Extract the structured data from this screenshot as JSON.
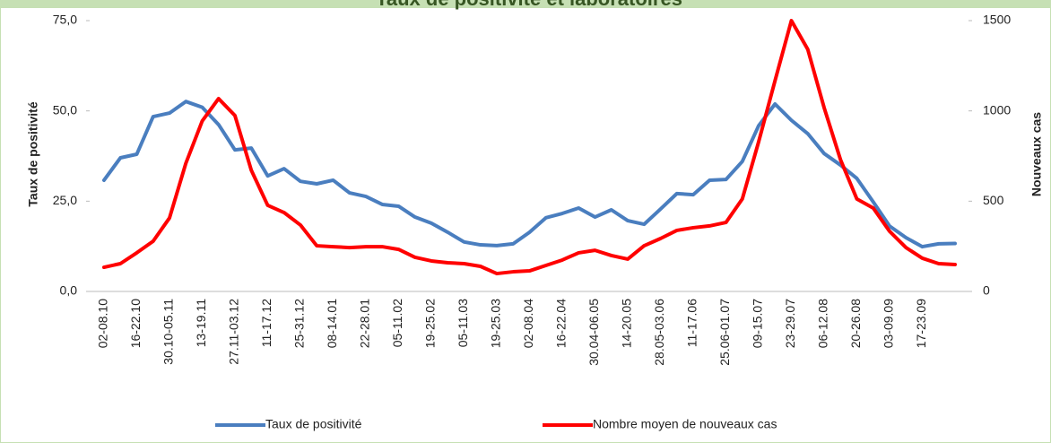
{
  "chart_data": {
    "type": "line",
    "title": "Taux de positivité et laboratoires",
    "y_label": "Taux de positivité",
    "y2_label": "Nouveaux cas",
    "categories": [
      "02-08.10",
      null,
      "16-22.10",
      null,
      "30.10-05.11",
      null,
      "13-19.11",
      null,
      "27.11-03.12",
      null,
      "11-17.12",
      null,
      "25-31.12",
      null,
      "08-14.01",
      null,
      "22-28.01",
      null,
      "05-11.02",
      null,
      "19-25.02",
      null,
      "05-11.03",
      null,
      "19-25.03",
      null,
      "02-08.04",
      null,
      "16-22.04",
      null,
      "30.04-06.05",
      null,
      "14-20.05",
      null,
      "28.05-03.06",
      null,
      "11-17.06",
      null,
      "25.06-01.07",
      null,
      "09-15.07",
      null,
      "23-29.07",
      null,
      "06-12.08",
      null,
      "20-26.08",
      null,
      "03-09.09",
      null,
      "17-23.09",
      null,
      null
    ],
    "series": [
      {
        "name": "Taux de positivité",
        "color": "#4a7ebf",
        "axis": "y",
        "values": [
          30.8,
          37,
          38,
          48.4,
          49.4,
          52.6,
          51,
          46.2,
          39.2,
          39.7,
          32,
          34,
          30.5,
          29.8,
          30.8,
          27.3,
          26.3,
          24.1,
          23.6,
          20.6,
          18.9,
          16.4,
          13.7,
          12.9,
          12.7,
          13.2,
          16.4,
          20.4,
          21.6,
          23.1,
          20.6,
          22.6,
          19.6,
          18.6,
          22.8,
          27.1,
          26.8,
          30.8,
          31,
          36,
          45.9,
          51.9,
          47.4,
          43.7,
          38.2,
          35,
          31.3,
          24.8,
          18.1,
          14.9,
          12.4,
          13.2,
          13.3
        ]
      },
      {
        "name": "Nombre moyen de nouveaux cas",
        "color": "#ff0000",
        "axis": "y2",
        "values": [
          134,
          154,
          214,
          278,
          407,
          710,
          944,
          1068,
          974,
          671,
          477,
          437,
          368,
          253,
          248,
          243,
          248,
          248,
          233,
          189,
          169,
          159,
          154,
          139,
          99,
          109,
          114,
          144,
          174,
          214,
          228,
          199,
          179,
          253,
          293,
          338,
          353,
          363,
          382,
          512,
          829,
          1167,
          1500,
          1341,
          1018,
          730,
          512,
          462,
          333,
          243,
          184,
          154,
          149
        ]
      }
    ],
    "ylim": [
      0,
      75
    ],
    "yticks": [
      {
        "value": 0,
        "label": "0,0"
      },
      {
        "value": 25,
        "label": "25,0"
      },
      {
        "value": 50,
        "label": "50,0"
      },
      {
        "value": 75,
        "label": "75,0"
      }
    ],
    "y2lim": [
      0,
      1500
    ],
    "y2ticks": [
      0,
      500,
      1000,
      1500
    ]
  }
}
